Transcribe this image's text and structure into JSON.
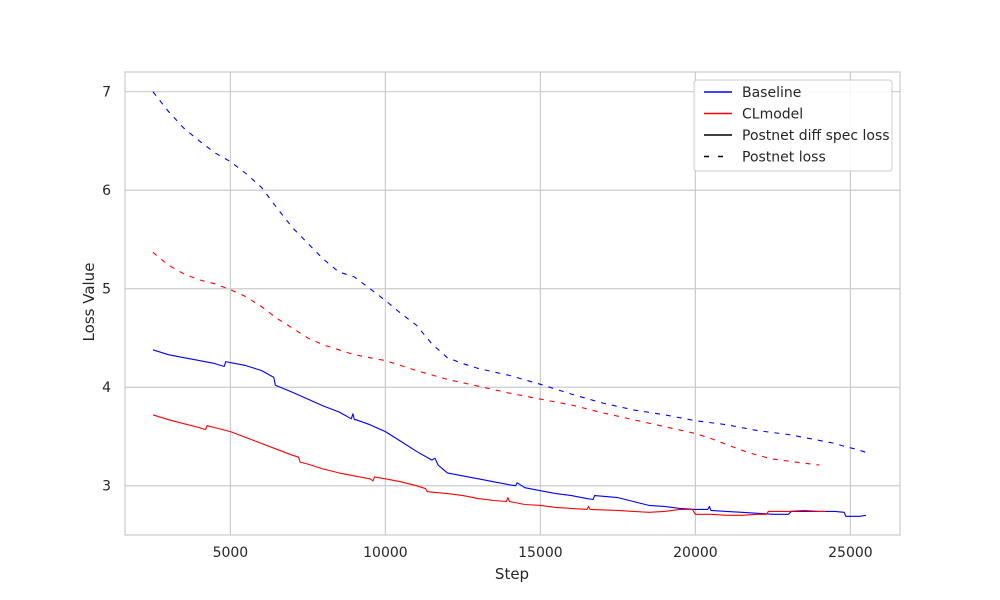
{
  "chart_data": {
    "type": "line",
    "title": "",
    "xlabel": "Step",
    "ylabel": "Loss Value",
    "xlim": [
      1600,
      26600
    ],
    "ylim": [
      2.5,
      7.2
    ],
    "xticks": [
      5000,
      10000,
      15000,
      20000,
      25000
    ],
    "yticks": [
      3,
      4,
      5,
      6,
      7
    ],
    "grid": true,
    "legend_position": "top-right",
    "legend": [
      {
        "label": "Baseline",
        "color": "#0000ff",
        "style": "solid"
      },
      {
        "label": "CLmodel",
        "color": "#ff0000",
        "style": "solid"
      },
      {
        "label": "Postnet diff spec loss",
        "color": "#000000",
        "style": "solid"
      },
      {
        "label": "Postnet loss",
        "color": "#000000",
        "style": "dashed"
      }
    ],
    "series": [
      {
        "model": "Baseline",
        "metric": "Postnet diff spec loss",
        "color": "#0000ff",
        "style": "solid",
        "x": [
          2500,
          3000,
          3500,
          4000,
          4500,
          4800,
          4850,
          5000,
          5500,
          6000,
          6400,
          6450,
          7000,
          7500,
          8000,
          8500,
          8900,
          8950,
          9000,
          9050,
          9500,
          10000,
          10500,
          11000,
          11500,
          11600,
          11700,
          12000,
          12500,
          13000,
          13500,
          14000,
          14200,
          14250,
          14500,
          15000,
          15500,
          16000,
          16500,
          16700,
          16750,
          17500,
          18000,
          18500,
          19000,
          19500,
          20000,
          20400,
          20450,
          20500,
          21000,
          21500,
          22000,
          22500,
          23000,
          23100,
          24000,
          24500,
          24800,
          24850,
          25000,
          25300,
          25500
        ],
        "y": [
          4.38,
          4.33,
          4.3,
          4.27,
          4.24,
          4.21,
          4.26,
          4.25,
          4.22,
          4.17,
          4.1,
          4.02,
          3.95,
          3.88,
          3.81,
          3.75,
          3.68,
          3.73,
          3.67,
          3.67,
          3.62,
          3.55,
          3.45,
          3.35,
          3.26,
          3.28,
          3.21,
          3.13,
          3.1,
          3.07,
          3.04,
          3.01,
          3.0,
          3.03,
          2.98,
          2.95,
          2.92,
          2.9,
          2.87,
          2.86,
          2.9,
          2.88,
          2.84,
          2.8,
          2.79,
          2.77,
          2.76,
          2.76,
          2.79,
          2.75,
          2.74,
          2.73,
          2.72,
          2.71,
          2.71,
          2.74,
          2.74,
          2.74,
          2.73,
          2.69,
          2.69,
          2.69,
          2.7
        ]
      },
      {
        "model": "CLmodel",
        "metric": "Postnet diff spec loss",
        "color": "#ff0000",
        "style": "solid",
        "x": [
          2500,
          3000,
          3500,
          4000,
          4200,
          4250,
          4500,
          5000,
          5500,
          6000,
          6500,
          7000,
          7200,
          7250,
          7500,
          8000,
          8500,
          9000,
          9500,
          9600,
          9650,
          10000,
          10500,
          11000,
          11300,
          11350,
          12000,
          12500,
          13000,
          13500,
          13900,
          13950,
          14000,
          14500,
          15000,
          15500,
          16000,
          16500,
          16550,
          16600,
          17500,
          18000,
          18500,
          19000,
          19500,
          19900,
          20000,
          20500,
          21000,
          21500,
          22000,
          22300,
          22350,
          23000,
          23500,
          24000,
          24200
        ],
        "y": [
          3.72,
          3.67,
          3.63,
          3.59,
          3.57,
          3.61,
          3.59,
          3.55,
          3.49,
          3.43,
          3.37,
          3.31,
          3.29,
          3.24,
          3.22,
          3.17,
          3.13,
          3.1,
          3.07,
          3.05,
          3.09,
          3.07,
          3.04,
          3.0,
          2.97,
          2.94,
          2.92,
          2.9,
          2.87,
          2.85,
          2.84,
          2.88,
          2.84,
          2.81,
          2.8,
          2.78,
          2.77,
          2.76,
          2.79,
          2.76,
          2.75,
          2.74,
          2.73,
          2.74,
          2.76,
          2.76,
          2.71,
          2.71,
          2.7,
          2.7,
          2.71,
          2.71,
          2.74,
          2.74,
          2.75,
          2.74,
          2.74
        ]
      },
      {
        "model": "Baseline",
        "metric": "Postnet loss",
        "color": "#0000ff",
        "style": "dashed",
        "x": [
          2500,
          3000,
          3500,
          4000,
          4500,
          5000,
          5500,
          6000,
          6500,
          7000,
          7500,
          8000,
          8500,
          9000,
          9500,
          10000,
          10500,
          11000,
          11500,
          12000,
          12500,
          13000,
          14000,
          15000,
          16000,
          17000,
          18000,
          19000,
          20000,
          21000,
          22000,
          23000,
          24000,
          24500,
          24800,
          25200,
          25500
        ],
        "y": [
          7.0,
          6.8,
          6.63,
          6.5,
          6.38,
          6.29,
          6.17,
          6.03,
          5.82,
          5.62,
          5.46,
          5.3,
          5.17,
          5.12,
          5.0,
          4.88,
          4.75,
          4.63,
          4.44,
          4.3,
          4.24,
          4.19,
          4.12,
          4.03,
          3.93,
          3.84,
          3.77,
          3.72,
          3.66,
          3.62,
          3.56,
          3.52,
          3.46,
          3.43,
          3.4,
          3.37,
          3.34
        ]
      },
      {
        "model": "CLmodel",
        "metric": "Postnet loss",
        "color": "#ff0000",
        "style": "dashed",
        "x": [
          2500,
          3000,
          3500,
          4000,
          4500,
          5000,
          5500,
          6000,
          6500,
          7000,
          7500,
          8000,
          8500,
          9000,
          9500,
          10000,
          11000,
          12000,
          13000,
          14000,
          15000,
          16000,
          17000,
          18000,
          19000,
          20000,
          20500,
          21000,
          21500,
          22000,
          22500,
          23000,
          23500,
          24000
        ],
        "y": [
          5.37,
          5.24,
          5.15,
          5.09,
          5.05,
          4.99,
          4.92,
          4.82,
          4.7,
          4.6,
          4.5,
          4.43,
          4.38,
          4.33,
          4.3,
          4.27,
          4.17,
          4.08,
          4.01,
          3.94,
          3.88,
          3.82,
          3.74,
          3.67,
          3.6,
          3.53,
          3.48,
          3.42,
          3.36,
          3.31,
          3.27,
          3.25,
          3.23,
          3.21
        ]
      }
    ]
  }
}
